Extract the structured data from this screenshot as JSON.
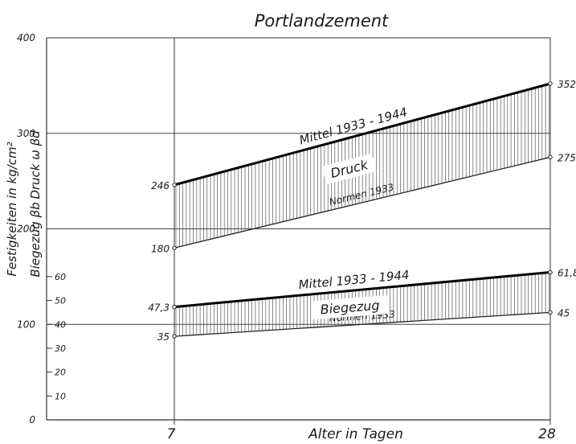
{
  "chart_data": {
    "type": "area",
    "title": "Portlandzement",
    "xlabel": "Alter in Tagen",
    "ylabel": "Festigkeiten in kg/cm²",
    "ylabel_druck": "Druck  ω βd",
    "ylabel_biegezug": "Biegezug βb",
    "x": [
      7,
      28
    ],
    "x_ticks": [
      "7",
      "28"
    ],
    "y_ticks_main": [
      "0",
      "100",
      "200",
      "300",
      "400"
    ],
    "y_ticks_main_values": [
      0,
      100,
      200,
      300,
      400
    ],
    "y_ticks_biegezug": [
      "10",
      "20",
      "30",
      "40",
      "50",
      "60"
    ],
    "y_ticks_biegezug_values": [
      10,
      20,
      30,
      40,
      50,
      60
    ],
    "ylim": [
      0,
      400
    ],
    "biegezug_scale_factor": 2.5,
    "bands": [
      {
        "name": "Druck",
        "upper": {
          "label": "Mittel 1933 - 1944",
          "values": [
            246,
            352
          ],
          "value_labels": [
            "246",
            "352"
          ]
        },
        "lower": {
          "label": "Normen 1933",
          "values": [
            180,
            275
          ],
          "value_labels": [
            "180",
            "275"
          ]
        }
      },
      {
        "name": "Biegezug",
        "upper": {
          "label": "Mittel 1933 - 1944",
          "values": [
            47.3,
            61.8
          ],
          "value_labels": [
            "47,3",
            "61,8"
          ]
        },
        "lower": {
          "label": "Normen 1933",
          "values": [
            35,
            45
          ],
          "value_labels": [
            "35",
            "45"
          ]
        }
      }
    ]
  }
}
